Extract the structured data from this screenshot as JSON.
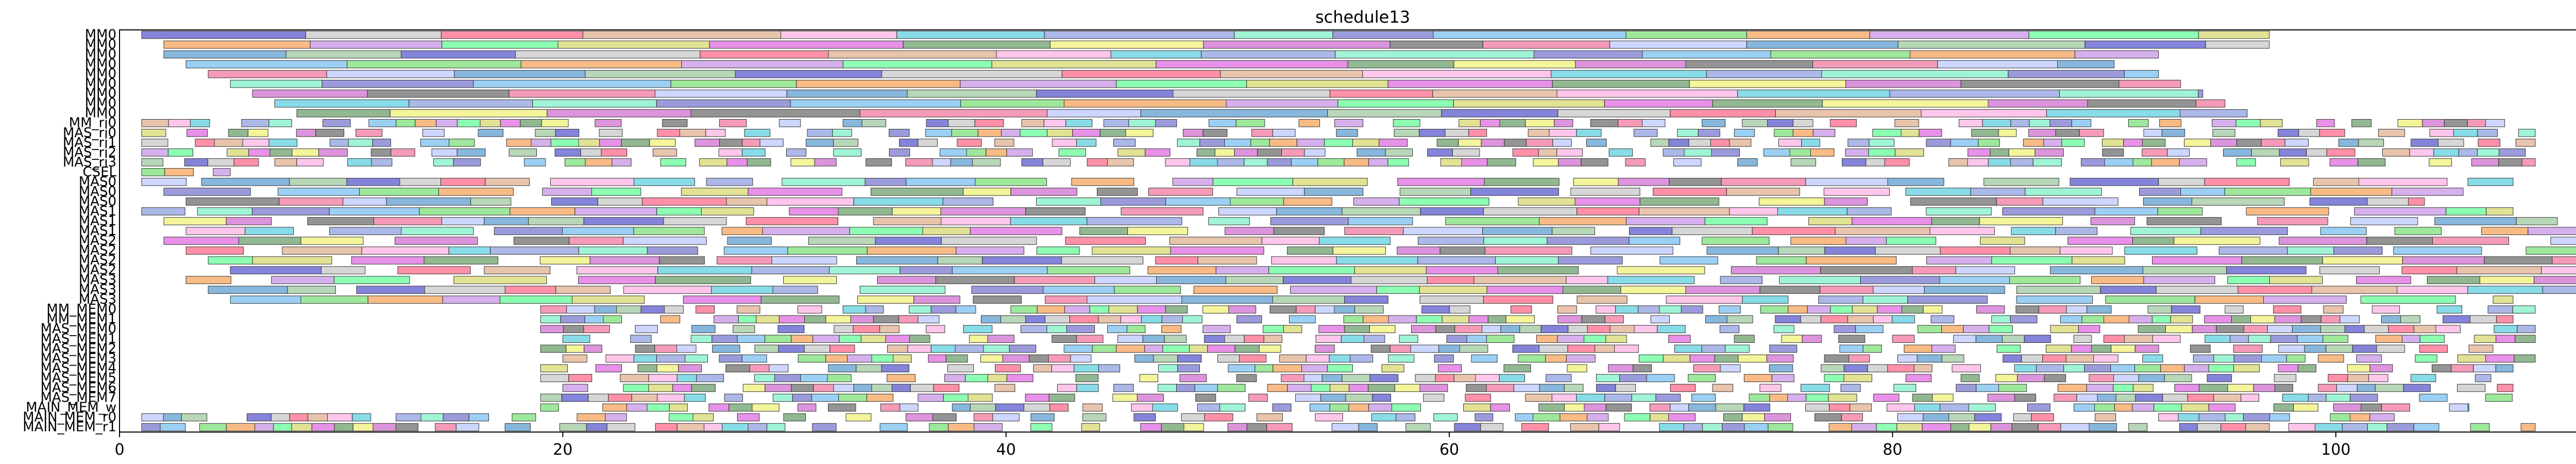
{
  "chart_data": {
    "type": "gantt",
    "title": "schedule13",
    "xlabel": "",
    "ylabel": "",
    "xlim": [
      0,
      112
    ],
    "x_ticks": [
      0,
      20,
      40,
      60,
      80,
      100
    ],
    "grid": false,
    "legend": "none",
    "rows": [
      "MM0",
      "MM0",
      "MM0",
      "MM0",
      "MM0",
      "MM0",
      "MM0",
      "MM0",
      "MM0",
      "MM_ri0",
      "MAS_ri0",
      "MAS_ri1",
      "MAS_ri2",
      "MAS_ri3",
      "CSEL",
      "MAS0",
      "MAS0",
      "MAS0",
      "MAS1",
      "MAS1",
      "MAS1",
      "MAS2",
      "MAS2",
      "MAS2",
      "MAS2",
      "MAS3",
      "MAS3",
      "MAS3",
      "MM_MEM0",
      "MM_MEM1",
      "MAS_MEM0",
      "MAS_MEM1",
      "MAS_MEM2",
      "MAS_MEM3",
      "MAS_MEM4",
      "MAS_MEM5",
      "MAS_MEM6",
      "MAS_MEM7",
      "MAIN_MEM_w",
      "MAIN_MEM_r0",
      "MAIN_MEM_r1"
    ],
    "row_spans": [
      [
        1,
        97
      ],
      [
        2,
        97
      ],
      [
        2,
        92
      ],
      [
        3,
        90
      ],
      [
        4,
        92
      ],
      [
        5,
        93
      ],
      [
        6,
        94
      ],
      [
        7,
        95
      ],
      [
        8,
        96
      ],
      [
        1,
        109
      ],
      [
        1,
        109
      ],
      [
        1,
        109
      ],
      [
        1,
        109
      ],
      [
        1,
        109
      ],
      [
        1,
        5
      ],
      [
        1,
        108
      ],
      [
        2,
        106
      ],
      [
        3,
        104
      ],
      [
        1,
        108
      ],
      [
        2,
        110
      ],
      [
        3,
        112
      ],
      [
        2,
        111
      ],
      [
        3,
        112
      ],
      [
        4,
        111
      ],
      [
        5,
        112
      ],
      [
        3,
        112
      ],
      [
        4,
        111
      ],
      [
        5,
        108
      ],
      [
        19,
        109
      ],
      [
        19,
        108
      ],
      [
        19,
        109
      ],
      [
        20,
        109
      ],
      [
        19,
        108
      ],
      [
        20,
        109
      ],
      [
        19,
        108
      ],
      [
        19,
        107
      ],
      [
        20,
        108
      ],
      [
        19,
        109
      ],
      [
        19,
        106
      ],
      [
        1,
        103
      ],
      [
        1,
        109
      ]
    ],
    "palette": [
      "#5b5bcf",
      "#5fd0e0",
      "#7ee07a",
      "#e06ce0",
      "#f27aa0",
      "#c8c8c8",
      "#8fa0e0",
      "#f5a45c",
      "#6ea06e",
      "#bcc8ff",
      "#ff6b8a",
      "#80f0c8",
      "#c896e6",
      "#f0f07a",
      "#5f9fd0",
      "#e0b090",
      "#7a7ad0",
      "#66ff99",
      "#d070d0",
      "#a0c8a0",
      "#ffb3e6",
      "#7ac0f0",
      "#d8d870",
      "#707070"
    ]
  }
}
